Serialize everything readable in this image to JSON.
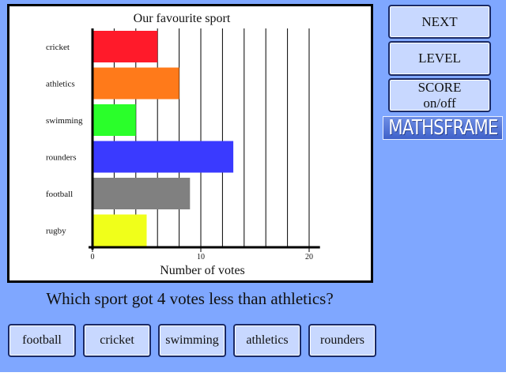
{
  "side_buttons": {
    "next": "NEXT",
    "level": "LEVEL",
    "score_line1": "SCORE",
    "score_line2": "on/off"
  },
  "logo": {
    "text": "MATHSFRAME"
  },
  "question": "Which sport got 4 votes less than athletics?",
  "answers": [
    "football",
    "cricket",
    "swimming",
    "athletics",
    "rounders"
  ],
  "chart_data": {
    "type": "bar",
    "orientation": "horizontal",
    "title": "Our favourite sport",
    "xlabel": "Number of votes",
    "ylabel": "",
    "categories": [
      "cricket",
      "athletics",
      "swimming",
      "rounders",
      "football",
      "rugby"
    ],
    "values": [
      6,
      8,
      4,
      13,
      9,
      5
    ],
    "colors": [
      "#ff1a2a",
      "#ff7a1a",
      "#2aff2a",
      "#3a3aff",
      "#808080",
      "#f0ff1a"
    ],
    "xlim": [
      0,
      21
    ],
    "xticks": [
      0,
      10,
      20
    ],
    "grid": true,
    "grid_step": 2
  },
  "colors": {
    "background": "#7fa7ff",
    "button_fill": "#c8d8ff",
    "button_border": "#1a2a66"
  }
}
